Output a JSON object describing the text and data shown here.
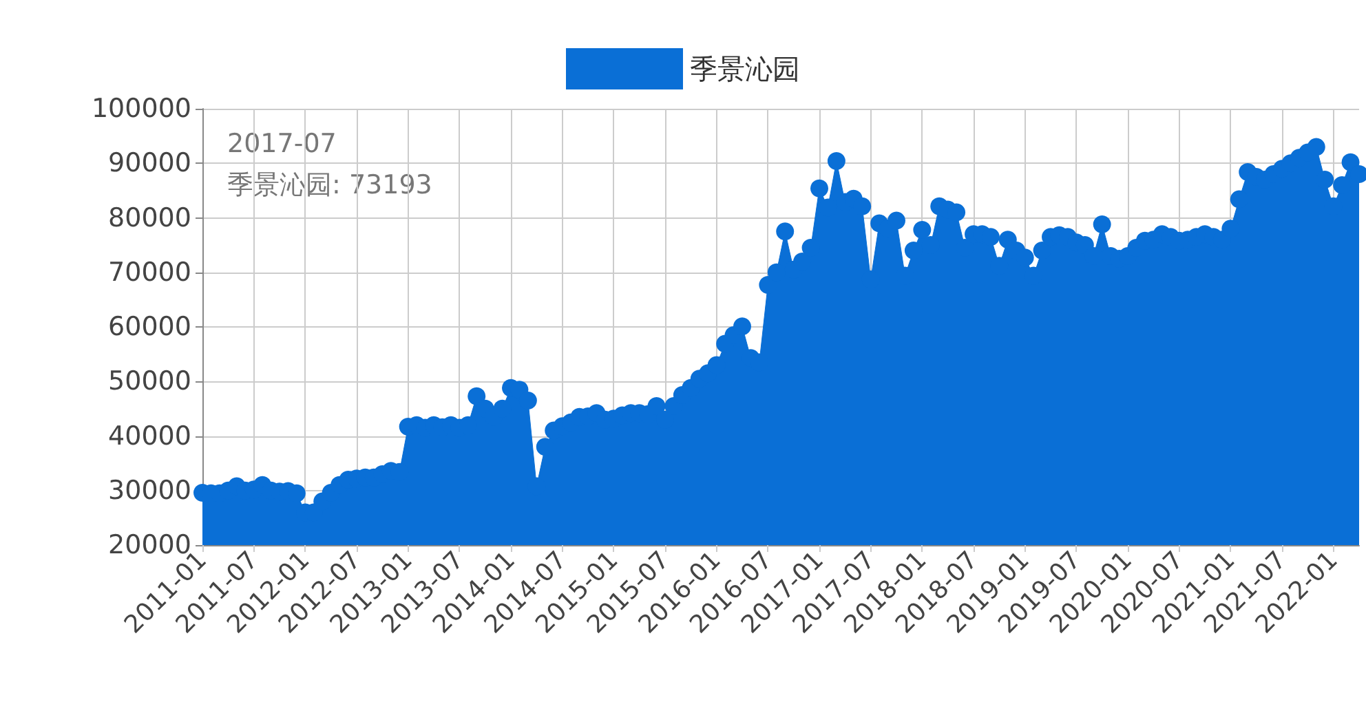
{
  "chart_data": {
    "type": "area",
    "categories": [
      "2011-01",
      null,
      null,
      null,
      null,
      null,
      "2011-07",
      null,
      null,
      null,
      null,
      null,
      "2012-01",
      null,
      null,
      null,
      null,
      null,
      "2012-07",
      null,
      null,
      null,
      null,
      null,
      "2013-01",
      null,
      null,
      null,
      null,
      null,
      "2013-07",
      null,
      null,
      null,
      null,
      null,
      "2014-01",
      null,
      null,
      null,
      null,
      null,
      "2014-07",
      null,
      null,
      null,
      null,
      null,
      "2015-01",
      null,
      null,
      null,
      null,
      null,
      "2015-07",
      null,
      null,
      null,
      null,
      null,
      "2016-01",
      null,
      null,
      null,
      null,
      null,
      "2016-07",
      null,
      null,
      null,
      null,
      null,
      "2017-01",
      null,
      null,
      null,
      null,
      null,
      "2017-07",
      null,
      null,
      null,
      null,
      null,
      "2018-01",
      null,
      null,
      null,
      null,
      null,
      "2018-07",
      null,
      null,
      null,
      null,
      null,
      "2019-01",
      null,
      null,
      null,
      null,
      null,
      "2019-07",
      null,
      null,
      null,
      null,
      null,
      "2020-01",
      null,
      null,
      null,
      null,
      null,
      "2020-07",
      null,
      null,
      null,
      null,
      null,
      "2021-01",
      null,
      null,
      null,
      null,
      null,
      "2021-07",
      null,
      null,
      null,
      null,
      null,
      "2022-01",
      null,
      null,
      null
    ],
    "series": [
      {
        "name": "季景沁园",
        "color": "#0a6fd6",
        "values": [
          29600,
          29500,
          29500,
          30000,
          30800,
          30000,
          30200,
          31000,
          30000,
          29800,
          29900,
          29500,
          26000,
          26000,
          28000,
          29600,
          31000,
          32000,
          32200,
          32400,
          32400,
          33000,
          33600,
          33400,
          41700,
          42000,
          41500,
          42000,
          41600,
          42000,
          41500,
          42000,
          47300,
          45000,
          43500,
          45000,
          48800,
          48500,
          46500,
          30800,
          38000,
          41000,
          41800,
          42500,
          43500,
          43600,
          44200,
          43000,
          43200,
          43800,
          44200,
          44200,
          44000,
          45500,
          43000,
          45500,
          47500,
          48800,
          50500,
          51500,
          53000,
          56900,
          58500,
          60100,
          54300,
          53500,
          67700,
          70000,
          77500,
          70500,
          72000,
          74500,
          85400,
          81900,
          90400,
          82900,
          83500,
          82100,
          68700,
          79000,
          78000,
          79500,
          69400,
          74000,
          77800,
          75000,
          82100,
          81500,
          81000,
          74500,
          77000,
          77000,
          76500,
          71200,
          76000,
          74000,
          72700,
          69400,
          74000,
          76500,
          76800,
          76500,
          75500,
          75000,
          73000,
          78800,
          73000,
          72500,
          73000,
          74500,
          75800,
          76000,
          77000,
          76500,
          75800,
          76000,
          76500,
          77000,
          76500,
          76000,
          78000,
          83400,
          88400,
          87500,
          87000,
          88000,
          89000,
          90000,
          91000,
          92000,
          93000,
          87000,
          82100,
          86000,
          90200,
          88000
        ]
      }
    ],
    "ylim": [
      20000,
      100000
    ],
    "yticks": [
      20000,
      30000,
      40000,
      50000,
      60000,
      70000,
      80000,
      90000,
      100000
    ],
    "grid": true,
    "legend": "top",
    "marker": "circle",
    "annotations": [
      "2017-07",
      "季景沁园: 73193"
    ]
  }
}
